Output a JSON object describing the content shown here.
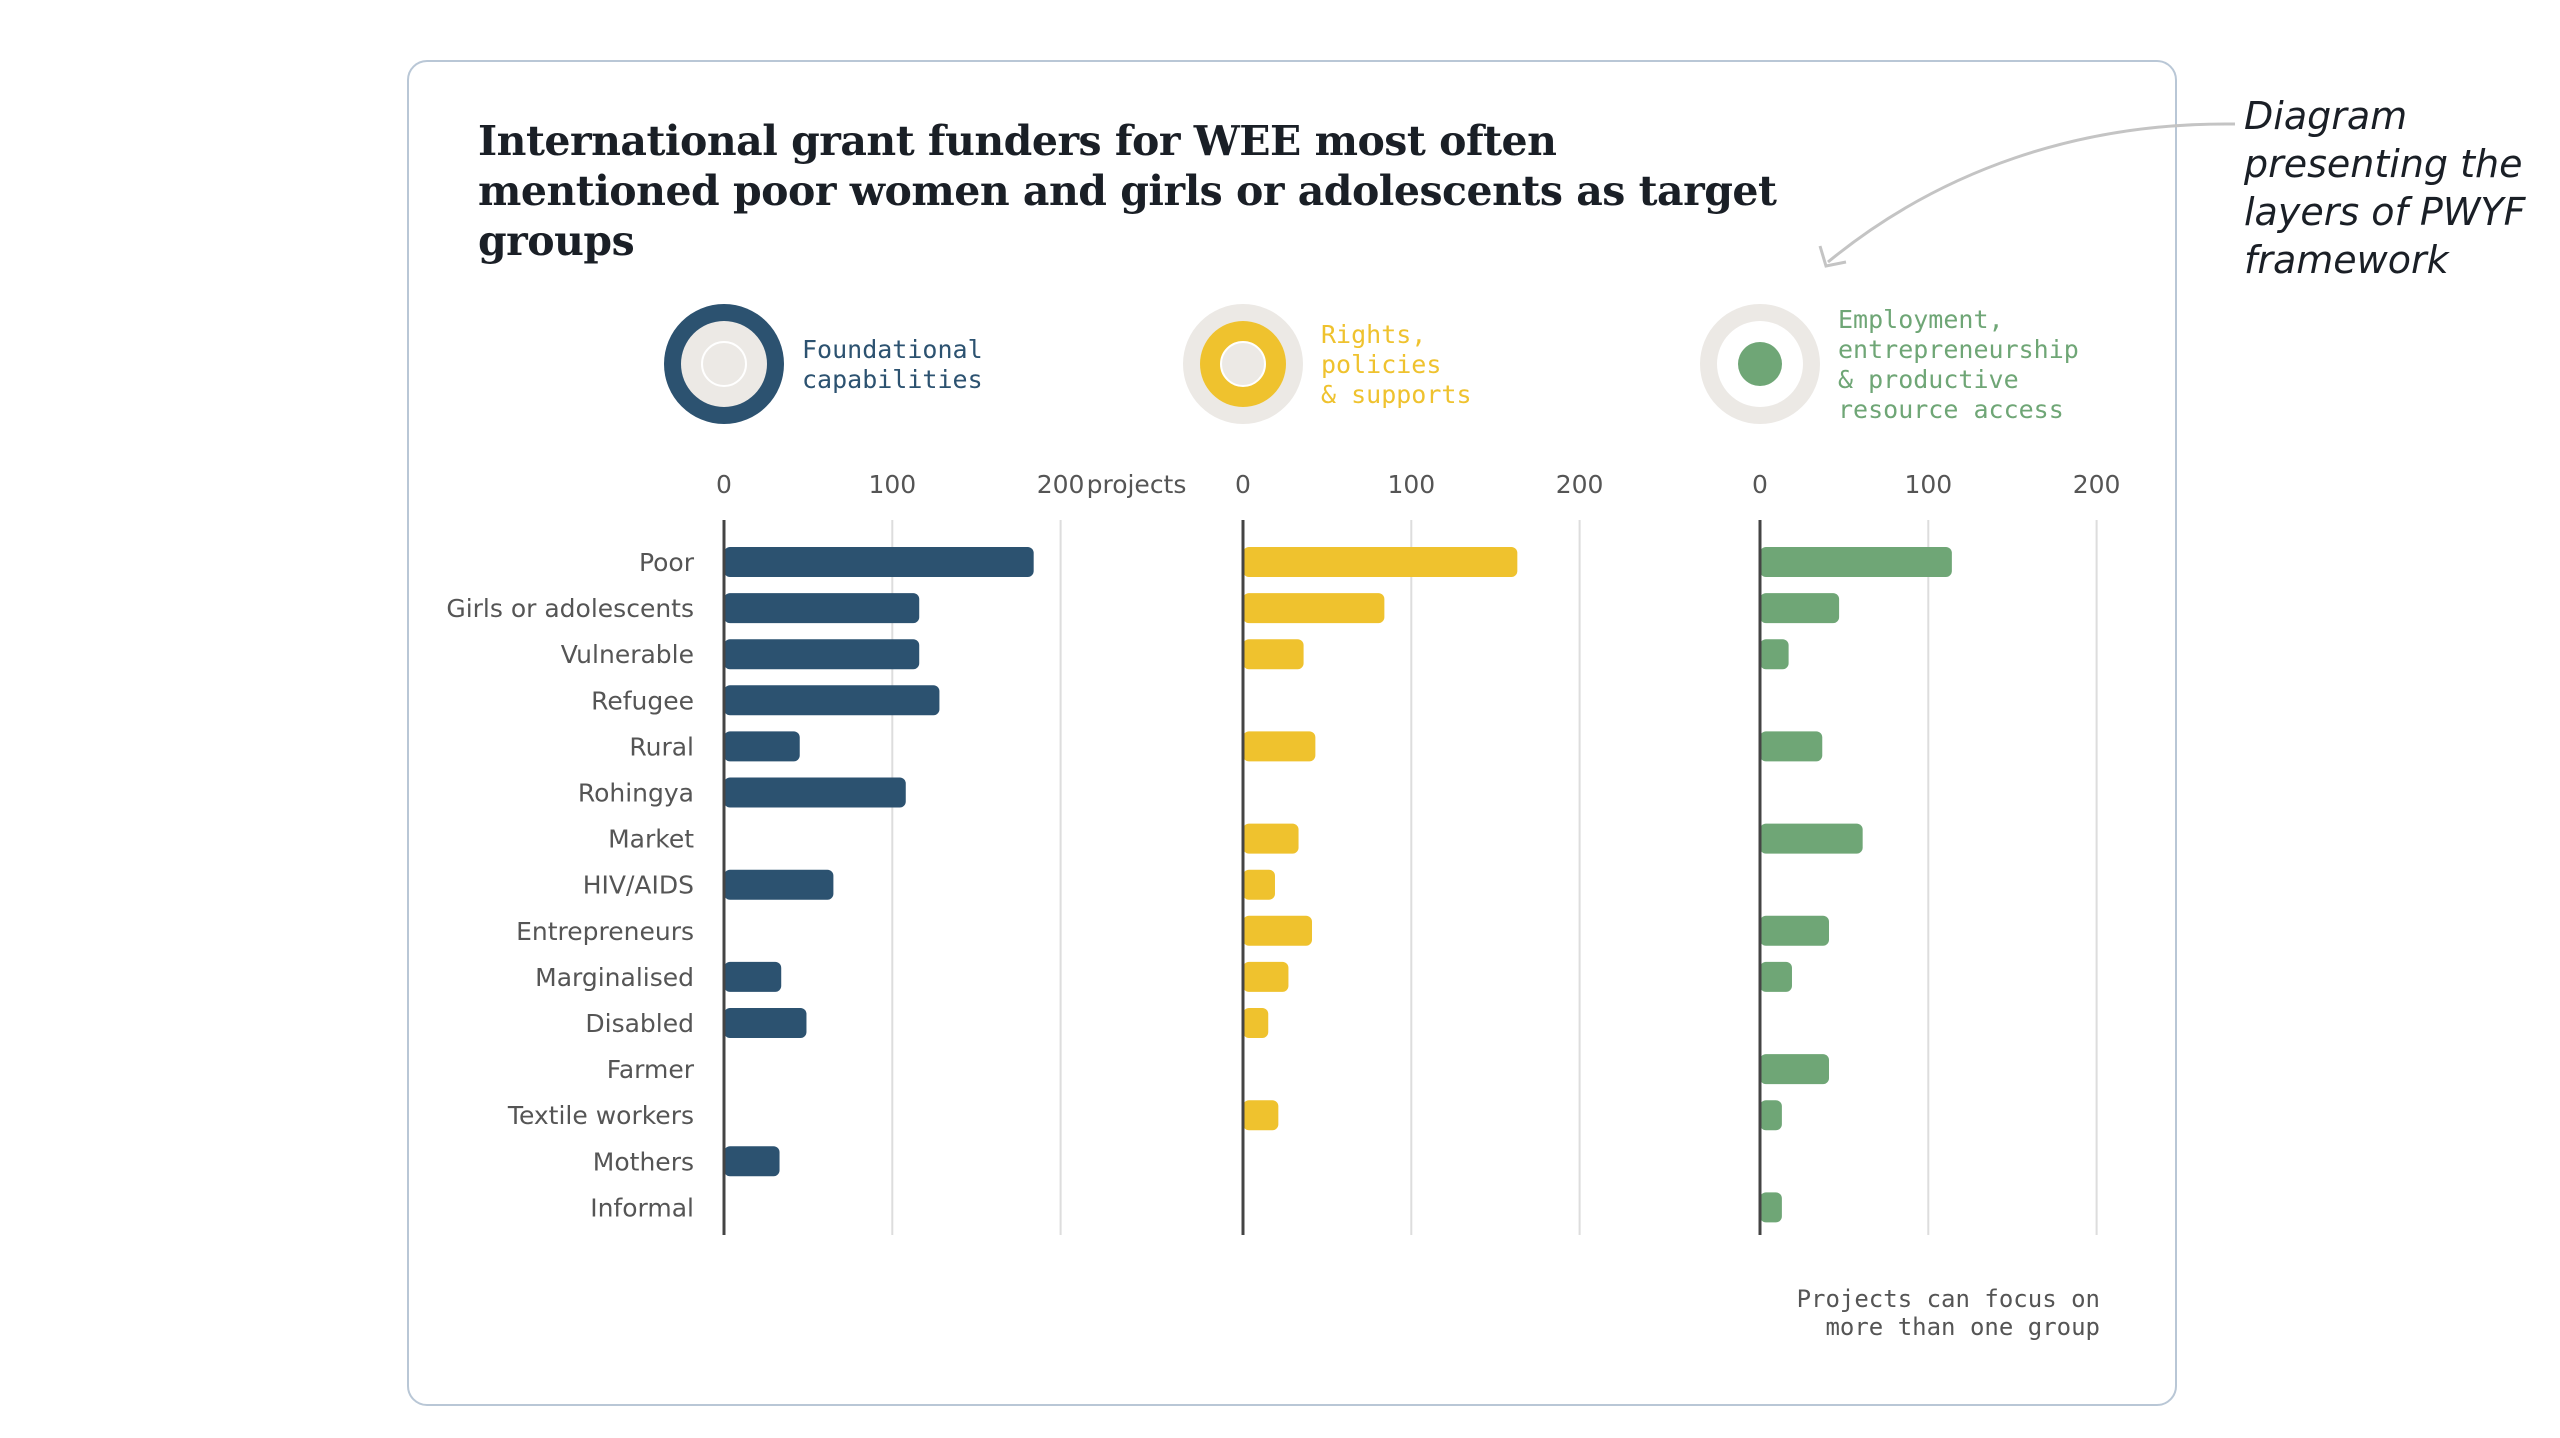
{
  "title": "International grant funders for WEE most often mentioned poor women and girls or adolescents as target groups",
  "annotation": [
    "Diagram",
    "presenting the",
    "layers of PWYF",
    "framework"
  ],
  "footnote": [
    "Projects can focus on",
    "more than one group"
  ],
  "colors": {
    "foundational": "#2c5270",
    "rights": "#efc22e",
    "employment": "#6fa676",
    "ring": "#ece9e5",
    "grid": "#dddddd",
    "axis": "#444444",
    "text": "#555555"
  },
  "chart_data": {
    "type": "bar",
    "orientation": "horizontal",
    "axis_unit": "projects",
    "xlim": [
      0,
      200
    ],
    "ticks": [
      0,
      100,
      200
    ],
    "grid": true,
    "categories": [
      "Poor",
      "Girls or adolescents",
      "Vulnerable",
      "Refugee",
      "Rural",
      "Rohingya",
      "Market",
      "HIV/AIDS",
      "Entrepreneurs",
      "Marginalised",
      "Disabled",
      "Farmer",
      "Textile workers",
      "Mothers",
      "Informal"
    ],
    "series": [
      {
        "key": "foundational",
        "name": "Foundational\ncapabilities",
        "values": [
          184,
          116,
          116,
          128,
          45,
          108,
          0,
          65,
          0,
          34,
          49,
          0,
          0,
          33,
          0
        ]
      },
      {
        "key": "rights",
        "name": "Rights,\npolicies\n& supports",
        "values": [
          163,
          84,
          36,
          0,
          43,
          0,
          33,
          19,
          41,
          27,
          15,
          0,
          21,
          0,
          0
        ]
      },
      {
        "key": "employment",
        "name": "Employment,\nentrepreneurship\n& productive\nresource access",
        "values": [
          114,
          47,
          17,
          0,
          37,
          0,
          61,
          0,
          41,
          19,
          0,
          41,
          13,
          0,
          13
        ]
      }
    ]
  }
}
